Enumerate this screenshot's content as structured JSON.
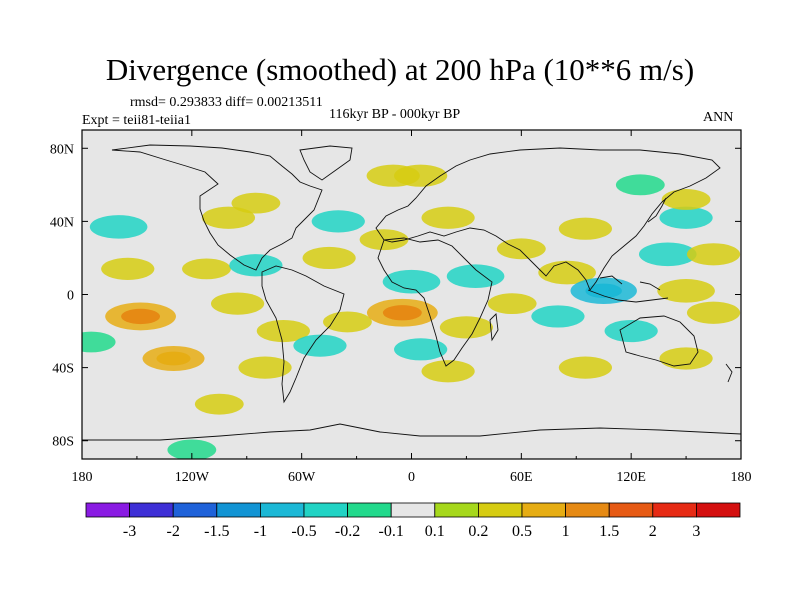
{
  "title": "Divergence (smoothed) at 200 hPa (10**6 m/s)",
  "stats": "rmsd= 0.293833 diff= 0.00213511",
  "expt": "Expt = teii81-teiia1",
  "period": "116kyr BP - 000kyr BP",
  "season": "ANN",
  "lat_labels": [
    "80N",
    "40N",
    "0",
    "40S",
    "80S"
  ],
  "lon_labels": [
    "180",
    "120W",
    "60W",
    "0",
    "60E",
    "120E",
    "180"
  ],
  "colorbar": {
    "labels": [
      "-3",
      "-2",
      "-1.5",
      "-1",
      "-0.5",
      "-0.2",
      "-0.1",
      "0.1",
      "0.2",
      "0.5",
      "1",
      "1.5",
      "2",
      "3"
    ],
    "colors": [
      "#8a1be3",
      "#3e2fd6",
      "#1f62d9",
      "#1294d4",
      "#1cb8d6",
      "#21d3c4",
      "#22d98c",
      "#e6e6e6",
      "#a6d81c",
      "#d6cc12",
      "#e6ad14",
      "#e68a14",
      "#e65a14",
      "#e62a14",
      "#d40f0f"
    ]
  },
  "chart_data": {
    "type": "map",
    "projection": "cylindrical equidistant",
    "lon_range": [
      -180,
      180
    ],
    "lat_range": [
      -90,
      90
    ],
    "levels": [
      -3,
      -2,
      -1.5,
      -1,
      -0.5,
      -0.2,
      -0.1,
      0.1,
      0.2,
      0.5,
      1,
      1.5,
      2,
      3
    ],
    "fields": [
      {
        "lon": -160,
        "lat": 37,
        "value": -0.4
      },
      {
        "lon": -100,
        "lat": 42,
        "value": 0.3
      },
      {
        "lon": -85,
        "lat": 50,
        "value": 0.2
      },
      {
        "lon": -40,
        "lat": 40,
        "value": -0.3
      },
      {
        "lon": -155,
        "lat": 14,
        "value": 0.3
      },
      {
        "lon": -112,
        "lat": 14,
        "value": 0.2
      },
      {
        "lon": -85,
        "lat": 16,
        "value": -0.3
      },
      {
        "lon": -45,
        "lat": 20,
        "value": 0.3
      },
      {
        "lon": -15,
        "lat": 30,
        "value": 0.2
      },
      {
        "lon": 0,
        "lat": 7,
        "value": -0.4
      },
      {
        "lon": 35,
        "lat": 10,
        "value": -0.4
      },
      {
        "lon": 20,
        "lat": 42,
        "value": 0.3
      },
      {
        "lon": 60,
        "lat": 25,
        "value": 0.2
      },
      {
        "lon": 85,
        "lat": 12,
        "value": 0.4
      },
      {
        "lon": 95,
        "lat": 36,
        "value": 0.3
      },
      {
        "lon": 150,
        "lat": 42,
        "value": -0.3
      },
      {
        "lon": 140,
        "lat": 22,
        "value": -0.4
      },
      {
        "lon": 105,
        "lat": 2,
        "value": -0.6
      },
      {
        "lon": 150,
        "lat": 2,
        "value": 0.4
      },
      {
        "lon": 165,
        "lat": -10,
        "value": 0.3
      },
      {
        "lon": -148,
        "lat": -12,
        "value": 0.7
      },
      {
        "lon": -95,
        "lat": -5,
        "value": 0.3
      },
      {
        "lon": -70,
        "lat": -20,
        "value": 0.3
      },
      {
        "lon": -35,
        "lat": -15,
        "value": 0.2
      },
      {
        "lon": -5,
        "lat": -10,
        "value": 0.7
      },
      {
        "lon": 30,
        "lat": -18,
        "value": 0.3
      },
      {
        "lon": 55,
        "lat": -5,
        "value": 0.2
      },
      {
        "lon": 80,
        "lat": -12,
        "value": -0.3
      },
      {
        "lon": 120,
        "lat": -20,
        "value": -0.3
      },
      {
        "lon": -175,
        "lat": -26,
        "value": -0.2
      },
      {
        "lon": -130,
        "lat": -35,
        "value": 0.5
      },
      {
        "lon": -50,
        "lat": -28,
        "value": -0.3
      },
      {
        "lon": 5,
        "lat": -30,
        "value": -0.3
      },
      {
        "lon": -80,
        "lat": -40,
        "value": 0.3
      },
      {
        "lon": 20,
        "lat": -42,
        "value": 0.3
      },
      {
        "lon": 95,
        "lat": -40,
        "value": 0.3
      },
      {
        "lon": 150,
        "lat": -35,
        "value": 0.3
      },
      {
        "lon": -105,
        "lat": -60,
        "value": 0.2
      },
      {
        "lon": -120,
        "lat": -85,
        "value": -0.2
      },
      {
        "lon": -10,
        "lat": 65,
        "value": 0.3
      },
      {
        "lon": 5,
        "lat": 65,
        "value": 0.3
      },
      {
        "lon": 125,
        "lat": 60,
        "value": -0.2
      },
      {
        "lon": 150,
        "lat": 52,
        "value": 0.2
      },
      {
        "lon": 165,
        "lat": 22,
        "value": 0.3
      }
    ]
  }
}
